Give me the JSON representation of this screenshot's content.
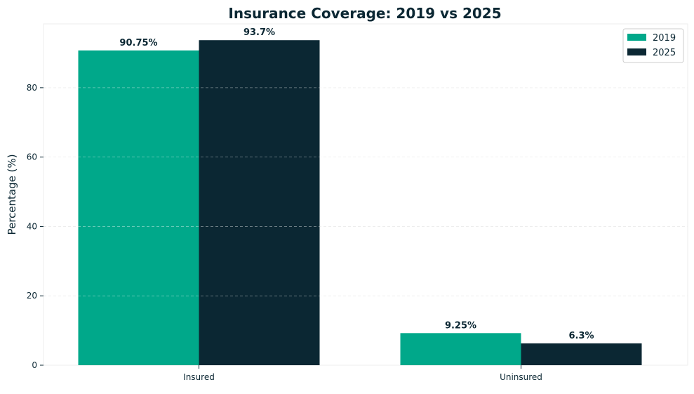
{
  "chart_data": {
    "type": "bar",
    "title": "Insurance Coverage: 2019 vs 2025",
    "xlabel": "",
    "ylabel": "Percentage (%)",
    "categories": [
      "Insured",
      "Uninsured"
    ],
    "series": [
      {
        "name": "2019",
        "color": "#00a88a",
        "values": [
          90.75,
          9.25
        ],
        "labels": [
          "90.75%",
          "9.25%"
        ]
      },
      {
        "name": "2025",
        "color": "#0b2733",
        "values": [
          93.7,
          6.3
        ],
        "labels": [
          "93.7%",
          "6.3%"
        ]
      }
    ],
    "ylim": [
      0,
      98.4
    ],
    "yticks": [
      0,
      20,
      40,
      60,
      80
    ],
    "ytick_labels": [
      "0",
      "20",
      "40",
      "60",
      "80"
    ],
    "grid": true,
    "legend_position": "top-right"
  }
}
